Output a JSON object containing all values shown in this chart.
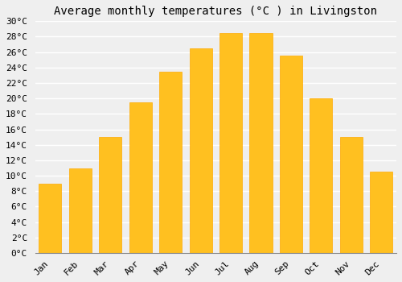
{
  "months": [
    "Jan",
    "Feb",
    "Mar",
    "Apr",
    "May",
    "Jun",
    "Jul",
    "Aug",
    "Sep",
    "Oct",
    "Nov",
    "Dec"
  ],
  "temperatures": [
    9,
    11,
    15,
    19.5,
    23.5,
    26.5,
    28.5,
    28.5,
    25.5,
    20,
    15,
    10.5
  ],
  "bar_color": "#FFC020",
  "bar_edge_color": "#FFAA00",
  "title": "Average monthly temperatures (°C ) in Livingston",
  "ylim": [
    0,
    30
  ],
  "ytick_step": 2,
  "background_color": "#EFEFEF",
  "plot_bg_color": "#EFEFEF",
  "grid_color": "#FFFFFF",
  "title_fontsize": 10,
  "tick_fontsize": 8,
  "bar_width": 0.75
}
